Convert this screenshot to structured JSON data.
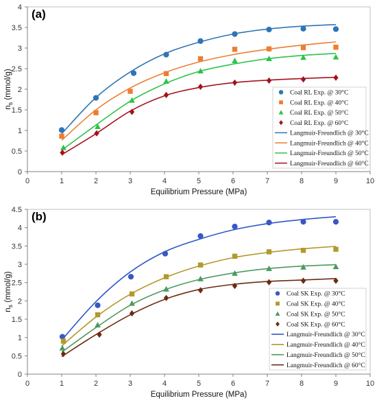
{
  "chart_data": [
    {
      "type": "scatter",
      "panel_label": "(a)",
      "xlabel": "Equilibrium Pressure (MPa)",
      "ylabel": "n_s (mmol/g)",
      "ylabel_main": "n",
      "ylabel_sub": "s",
      "ylabel_rest": " (mmol/g)",
      "xlim": [
        0,
        10
      ],
      "ylim": [
        0,
        4
      ],
      "xticks": [
        "0",
        "1",
        "2",
        "3",
        "4",
        "5",
        "6",
        "7",
        "8",
        "9",
        "10"
      ],
      "yticks": [
        "0",
        "0.5",
        "1",
        "1.5",
        "2",
        "2.5",
        "3",
        "3.5",
        "4"
      ],
      "grid": false,
      "legend_position": "bottom-right",
      "series": [
        {
          "name": "Coal RL Exp. @ 30°C",
          "kind": "points",
          "marker": "circle",
          "color": "#2e75b6",
          "x": [
            1,
            2,
            3.1,
            4.05,
            5.05,
            6.05,
            7.05,
            8.05,
            9
          ],
          "y": [
            1.01,
            1.79,
            2.39,
            2.84,
            3.17,
            3.34,
            3.45,
            3.47,
            3.46
          ]
        },
        {
          "name": "Coal RL Exp. @ 40°C",
          "kind": "points",
          "marker": "square",
          "color": "#ed7d31",
          "x": [
            1,
            2,
            3,
            4.05,
            5.05,
            6.05,
            7.05,
            8.05,
            9
          ],
          "y": [
            0.86,
            1.43,
            1.95,
            2.38,
            2.74,
            2.97,
            2.98,
            3.01,
            3.02
          ]
        },
        {
          "name": "Coal RL Exp. @ 50°C",
          "kind": "points",
          "marker": "triangle",
          "color": "#2ec24a",
          "x": [
            1.05,
            2.05,
            3.05,
            4.05,
            5.05,
            6.05,
            7.05,
            8.05,
            9
          ],
          "y": [
            0.58,
            1.09,
            1.73,
            2.19,
            2.44,
            2.69,
            2.74,
            2.77,
            2.78
          ]
        },
        {
          "name": "Coal RL Exp. @ 60°C",
          "kind": "points",
          "marker": "diamond",
          "color": "#a5121e",
          "x": [
            1.02,
            2.02,
            3.05,
            4.05,
            5.05,
            6.05,
            7.05,
            8.05,
            9
          ],
          "y": [
            0.46,
            0.93,
            1.45,
            1.86,
            2.06,
            2.16,
            2.21,
            2.24,
            2.28
          ]
        },
        {
          "name": "Langmuir-Freundlich @ 30°C",
          "kind": "line",
          "color": "#2e75b6",
          "x": [
            1,
            2,
            3,
            4,
            5,
            6,
            7,
            8,
            9
          ],
          "y": [
            0.92,
            1.8,
            2.42,
            2.86,
            3.14,
            3.34,
            3.46,
            3.53,
            3.57
          ]
        },
        {
          "name": "Langmuir-Freundlich @ 40°C",
          "kind": "line",
          "color": "#ed7d31",
          "x": [
            1,
            2,
            3,
            4,
            5,
            6,
            7,
            8,
            9
          ],
          "y": [
            0.76,
            1.5,
            2.03,
            2.4,
            2.66,
            2.84,
            2.97,
            3.07,
            3.15
          ]
        },
        {
          "name": "Langmuir-Freundlich @ 50°C",
          "kind": "line",
          "color": "#2ec24a",
          "x": [
            1,
            2,
            3,
            4,
            5,
            6,
            7,
            8,
            9
          ],
          "y": [
            0.52,
            1.13,
            1.71,
            2.13,
            2.43,
            2.61,
            2.74,
            2.82,
            2.87
          ]
        },
        {
          "name": "Langmuir-Freundlich @ 60°C",
          "kind": "line",
          "color": "#a5121e",
          "x": [
            1,
            2,
            3,
            4,
            5,
            6,
            7,
            8,
            9
          ],
          "y": [
            0.41,
            0.92,
            1.47,
            1.84,
            2.04,
            2.16,
            2.22,
            2.26,
            2.29
          ]
        }
      ]
    },
    {
      "type": "scatter",
      "panel_label": "(b)",
      "xlabel": "Equilibrium Pressure (MPa)",
      "ylabel": "n_s (mmol/g)",
      "ylabel_main": "n",
      "ylabel_sub": "s",
      "ylabel_rest": " (mmol/g)",
      "xlim": [
        0,
        10
      ],
      "ylim": [
        0,
        4.5
      ],
      "xticks": [
        "0",
        "1",
        "2",
        "3",
        "4",
        "5",
        "6",
        "7",
        "8",
        "9",
        "10"
      ],
      "yticks": [
        "0",
        "0.5",
        "1",
        "1.5",
        "2",
        "2.5",
        "3",
        "3.5",
        "4",
        "4.5"
      ],
      "grid": false,
      "legend_position": "bottom-right",
      "series": [
        {
          "name": "Coal SK Exp. @ 30°C",
          "kind": "points",
          "marker": "circle",
          "color": "#3a57c4",
          "x": [
            1.02,
            2.05,
            3.02,
            4.02,
            5.05,
            6.05,
            7.05,
            8.05,
            9
          ],
          "y": [
            1.02,
            1.88,
            2.66,
            3.29,
            3.77,
            4.03,
            4.14,
            4.16,
            4.16
          ]
        },
        {
          "name": "Coal SK Exp. @ 40°C",
          "kind": "points",
          "marker": "square",
          "color": "#b3982c",
          "x": [
            1.05,
            2.05,
            3.05,
            4.05,
            5.05,
            6.05,
            7.05,
            8.05,
            9
          ],
          "y": [
            0.9,
            1.62,
            2.19,
            2.66,
            2.98,
            3.22,
            3.34,
            3.38,
            3.41
          ]
        },
        {
          "name": "Coal SK Exp. @ 50°C",
          "kind": "points",
          "marker": "triangle",
          "color": "#4c9a5e",
          "x": [
            1.02,
            2.05,
            3.05,
            4.05,
            5.05,
            6.05,
            7.05,
            8.05,
            9
          ],
          "y": [
            0.71,
            1.34,
            1.93,
            2.32,
            2.6,
            2.75,
            2.88,
            2.92,
            2.93
          ]
        },
        {
          "name": "Coal SK Exp. @ 60°C",
          "kind": "points",
          "marker": "diamond",
          "color": "#6b2b12",
          "x": [
            1.05,
            2.1,
            3.05,
            4.05,
            5.05,
            6.05,
            7.05,
            8.05,
            9
          ],
          "y": [
            0.55,
            1.08,
            1.66,
            2.08,
            2.29,
            2.41,
            2.51,
            2.55,
            2.55
          ]
        },
        {
          "name": "Langmuir-Freundlich @ 30°C",
          "kind": "line",
          "color": "#2e58c8",
          "x": [
            1,
            2,
            3,
            4,
            5,
            6,
            7,
            8,
            9
          ],
          "y": [
            0.93,
            1.98,
            2.79,
            3.34,
            3.68,
            3.94,
            4.11,
            4.22,
            4.3
          ]
        },
        {
          "name": "Langmuir-Freundlich @ 40°C",
          "kind": "line",
          "color": "#b3982c",
          "x": [
            1,
            2,
            3,
            4,
            5,
            6,
            7,
            8,
            9
          ],
          "y": [
            0.77,
            1.56,
            2.18,
            2.63,
            2.95,
            3.18,
            3.32,
            3.42,
            3.49
          ]
        },
        {
          "name": "Langmuir-Freundlich @ 50°C",
          "kind": "line",
          "color": "#4c9a5e",
          "x": [
            1,
            2,
            3,
            4,
            5,
            6,
            7,
            8,
            9
          ],
          "y": [
            0.6,
            1.27,
            1.88,
            2.3,
            2.58,
            2.76,
            2.88,
            2.95,
            2.99
          ]
        },
        {
          "name": "Langmuir-Freundlich @ 60°C",
          "kind": "line",
          "color": "#6b2b12",
          "x": [
            1,
            2,
            3,
            4,
            5,
            6,
            7,
            8,
            9
          ],
          "y": [
            0.48,
            1.08,
            1.62,
            2.04,
            2.31,
            2.45,
            2.53,
            2.57,
            2.61
          ]
        }
      ]
    }
  ]
}
